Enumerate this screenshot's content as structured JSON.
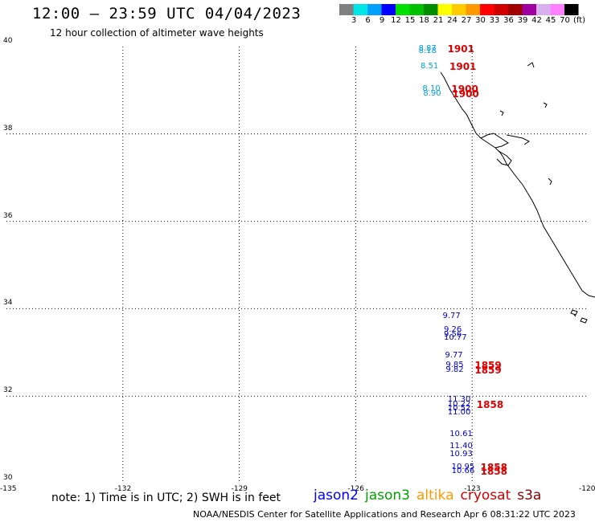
{
  "header": {
    "title": "12:00 – 23:59 UTC 04/04/2023",
    "subtitle": "12 hour collection of altimeter wave heights"
  },
  "legend": {
    "unit": "(ft)",
    "bins": [
      {
        "label": "3",
        "color": "#808080"
      },
      {
        "label": "6",
        "color": "#00e5e5"
      },
      {
        "label": "9",
        "color": "#00a0ff"
      },
      {
        "label": "12",
        "color": "#0000ff"
      },
      {
        "label": "15",
        "color": "#00e000"
      },
      {
        "label": "18",
        "color": "#00c000"
      },
      {
        "label": "21",
        "color": "#008c00"
      },
      {
        "label": "24",
        "color": "#ffff00"
      },
      {
        "label": "27",
        "color": "#ffcc00"
      },
      {
        "label": "30",
        "color": "#ff9900"
      },
      {
        "label": "33",
        "color": "#ff0000"
      },
      {
        "label": "36",
        "color": "#d00000"
      },
      {
        "label": "39",
        "color": "#a00000"
      },
      {
        "label": "42",
        "color": "#a000a0"
      },
      {
        "label": "45",
        "color": "#d8b0f0"
      },
      {
        "label": "70",
        "color": "#ff80ff"
      },
      {
        "label": "",
        "color": "#000000"
      }
    ]
  },
  "axes": {
    "lon_ticks": [
      "-135",
      "-132",
      "-129",
      "-126",
      "-123",
      "-120"
    ],
    "lat_ticks": [
      "30",
      "32",
      "34",
      "36",
      "38",
      "40"
    ]
  },
  "observations": [
    {
      "lat": 39.93,
      "lon": -123.8,
      "swh": "8.87",
      "time": "1901",
      "color": "#00a0e0"
    },
    {
      "lat": 39.87,
      "lon": -123.8,
      "swh": "8.18",
      "time": "",
      "color": "#00a0e0"
    },
    {
      "lat": 39.53,
      "lon": -123.75,
      "swh": "8.51",
      "time": "1901",
      "color": "#00a0e0"
    },
    {
      "lat": 39.0,
      "lon": -123.7,
      "swh": "8.10",
      "time": "1900",
      "color": "#00a0e0"
    },
    {
      "lat": 38.9,
      "lon": -123.68,
      "swh": "8.90",
      "time": "1900",
      "color": "#00a0e0"
    },
    {
      "lat": 33.8,
      "lon": -123.18,
      "swh": "9.77",
      "time": "",
      "color": "#0000cc"
    },
    {
      "lat": 33.5,
      "lon": -123.15,
      "swh": "9.26",
      "time": "",
      "color": "#0000cc"
    },
    {
      "lat": 33.38,
      "lon": -123.15,
      "swh": "9.56",
      "time": "",
      "color": "#0000cc"
    },
    {
      "lat": 33.3,
      "lon": -123.15,
      "swh": "10.77",
      "time": "",
      "color": "#0000cc"
    },
    {
      "lat": 32.9,
      "lon": -123.12,
      "swh": "9.77",
      "time": "",
      "color": "#0000cc"
    },
    {
      "lat": 32.68,
      "lon": -123.1,
      "swh": "9.85",
      "time": "1859",
      "color": "#0000cc"
    },
    {
      "lat": 32.58,
      "lon": -123.1,
      "swh": "9.82",
      "time": "1859",
      "color": "#0000cc"
    },
    {
      "lat": 31.9,
      "lon": -123.05,
      "swh": "11.30",
      "time": "",
      "color": "#0000cc"
    },
    {
      "lat": 31.78,
      "lon": -123.05,
      "swh": "10.22",
      "time": "1858",
      "color": "#0000cc"
    },
    {
      "lat": 31.7,
      "lon": -123.05,
      "swh": "10.52",
      "time": "",
      "color": "#0000cc"
    },
    {
      "lat": 31.6,
      "lon": -123.05,
      "swh": "11.00",
      "time": "",
      "color": "#0000cc"
    },
    {
      "lat": 31.1,
      "lon": -123.0,
      "swh": "10.61",
      "time": "",
      "color": "#0000cc"
    },
    {
      "lat": 30.82,
      "lon": -123.0,
      "swh": "11.40",
      "time": "",
      "color": "#0000cc"
    },
    {
      "lat": 30.65,
      "lon": -123.0,
      "swh": "10.93",
      "time": "",
      "color": "#0000cc"
    },
    {
      "lat": 30.35,
      "lon": -122.95,
      "swh": "10.95",
      "time": "1858",
      "color": "#0000cc"
    },
    {
      "lat": 30.25,
      "lon": -122.95,
      "swh": "10.66",
      "time": "1858",
      "color": "#0000cc"
    }
  ],
  "note": "note: 1) Time is in UTC; 2) SWH is in feet",
  "missions": [
    {
      "name": "jason2",
      "color": "#0000ff"
    },
    {
      "name": "jason3",
      "color": "#00a000"
    },
    {
      "name": "altika",
      "color": "#ff9900"
    },
    {
      "name": "cryosat",
      "color": "#cc0000"
    },
    {
      "name": "s3a",
      "color": "#800000"
    }
  ],
  "footer": "NOAA/NESDIS Center for Satellite Applications and Research    Apr  6 08:31:22 UTC 2023"
}
